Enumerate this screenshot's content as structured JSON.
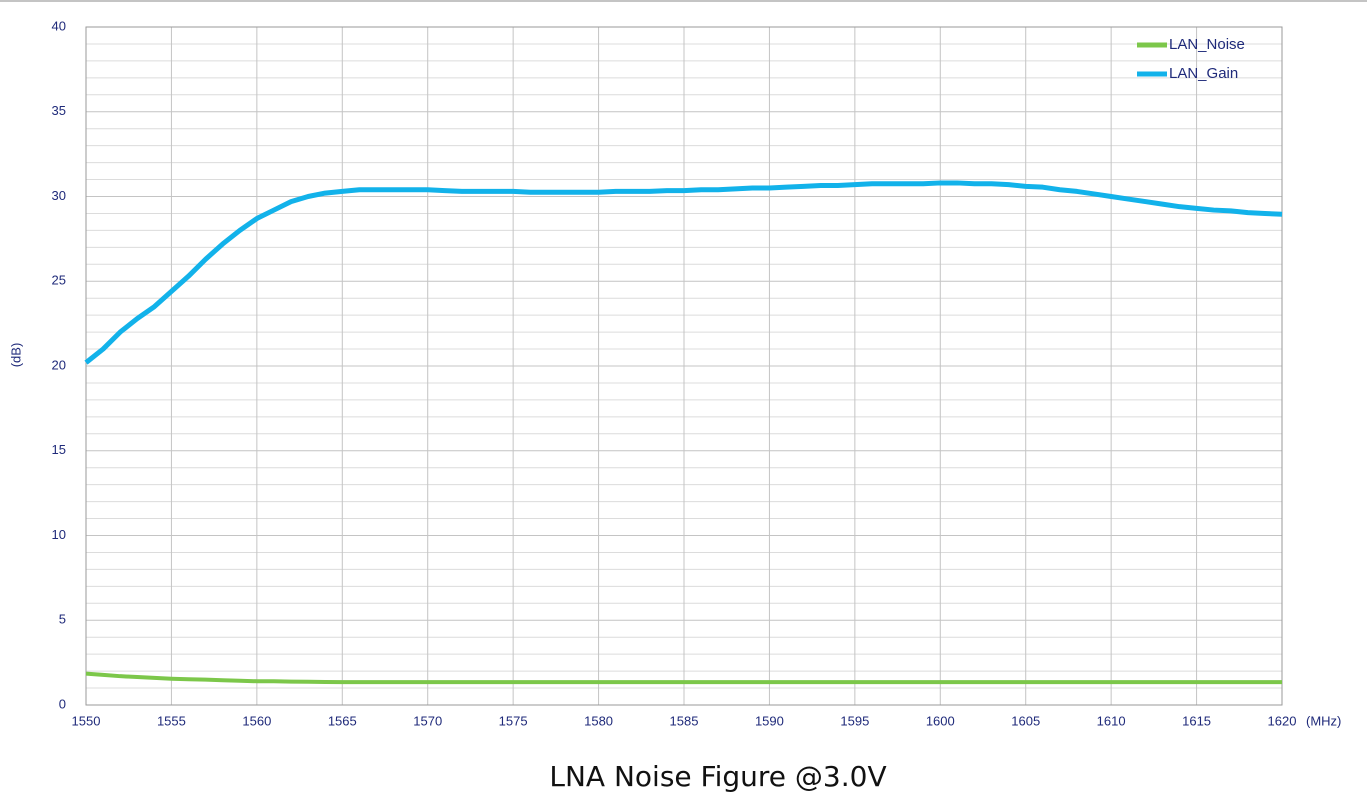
{
  "chart_data": {
    "type": "line",
    "caption": "LNA Noise Figure @3.0V",
    "x_label": "(MHz)",
    "y_label": "(dB)",
    "x": [
      1550,
      1551,
      1552,
      1553,
      1554,
      1555,
      1556,
      1557,
      1558,
      1559,
      1560,
      1561,
      1562,
      1563,
      1564,
      1565,
      1566,
      1567,
      1568,
      1569,
      1570,
      1571,
      1572,
      1573,
      1574,
      1575,
      1576,
      1577,
      1578,
      1579,
      1580,
      1581,
      1582,
      1583,
      1584,
      1585,
      1586,
      1587,
      1588,
      1589,
      1590,
      1591,
      1592,
      1593,
      1594,
      1595,
      1596,
      1597,
      1598,
      1599,
      1600,
      1601,
      1602,
      1603,
      1604,
      1605,
      1606,
      1607,
      1608,
      1609,
      1610,
      1611,
      1612,
      1613,
      1614,
      1615,
      1616,
      1617,
      1618,
      1619,
      1620
    ],
    "series": [
      {
        "name": "LAN_Noise",
        "color": "#7cc74a",
        "values": [
          1.85,
          1.78,
          1.7,
          1.65,
          1.6,
          1.55,
          1.52,
          1.5,
          1.46,
          1.43,
          1.4,
          1.4,
          1.38,
          1.37,
          1.36,
          1.35,
          1.35,
          1.35,
          1.35,
          1.35,
          1.35,
          1.35,
          1.35,
          1.35,
          1.35,
          1.35,
          1.35,
          1.35,
          1.35,
          1.35,
          1.35,
          1.35,
          1.35,
          1.35,
          1.35,
          1.35,
          1.35,
          1.35,
          1.35,
          1.35,
          1.35,
          1.35,
          1.35,
          1.35,
          1.35,
          1.35,
          1.35,
          1.35,
          1.35,
          1.35,
          1.35,
          1.35,
          1.35,
          1.35,
          1.35,
          1.35,
          1.35,
          1.35,
          1.35,
          1.35,
          1.35,
          1.35,
          1.35,
          1.35,
          1.35,
          1.35,
          1.35,
          1.35,
          1.35,
          1.35,
          1.35
        ]
      },
      {
        "name": "LAN_Gain",
        "color": "#12b2ea",
        "values": [
          20.2,
          21.0,
          22.0,
          22.8,
          23.5,
          24.4,
          25.3,
          26.3,
          27.2,
          28.0,
          28.7,
          29.2,
          29.7,
          30.0,
          30.2,
          30.3,
          30.4,
          30.4,
          30.4,
          30.4,
          30.4,
          30.35,
          30.3,
          30.3,
          30.3,
          30.3,
          30.25,
          30.25,
          30.25,
          30.25,
          30.25,
          30.3,
          30.3,
          30.3,
          30.35,
          30.35,
          30.4,
          30.4,
          30.45,
          30.5,
          30.5,
          30.55,
          30.6,
          30.65,
          30.65,
          30.7,
          30.75,
          30.75,
          30.75,
          30.75,
          30.8,
          30.8,
          30.75,
          30.75,
          30.7,
          30.6,
          30.55,
          30.4,
          30.3,
          30.15,
          30.0,
          29.85,
          29.7,
          29.55,
          29.4,
          29.3,
          29.2,
          29.15,
          29.05,
          29.0,
          28.95
        ]
      }
    ],
    "xlim": [
      1550,
      1620
    ],
    "xticks": [
      1550,
      1555,
      1560,
      1565,
      1570,
      1575,
      1580,
      1585,
      1590,
      1595,
      1600,
      1605,
      1610,
      1615,
      1620
    ],
    "ylim": [
      0,
      40
    ],
    "yticks": [
      0,
      5,
      10,
      15,
      20,
      25,
      30,
      35,
      40
    ],
    "yminorticks": [
      1,
      2,
      3,
      4,
      6,
      7,
      8,
      9,
      11,
      12,
      13,
      14,
      16,
      17,
      18,
      19,
      21,
      22,
      23,
      24,
      26,
      27,
      28,
      29,
      31,
      32,
      33,
      34,
      36,
      37,
      38,
      39
    ],
    "grid": true,
    "legend": "top-right"
  }
}
